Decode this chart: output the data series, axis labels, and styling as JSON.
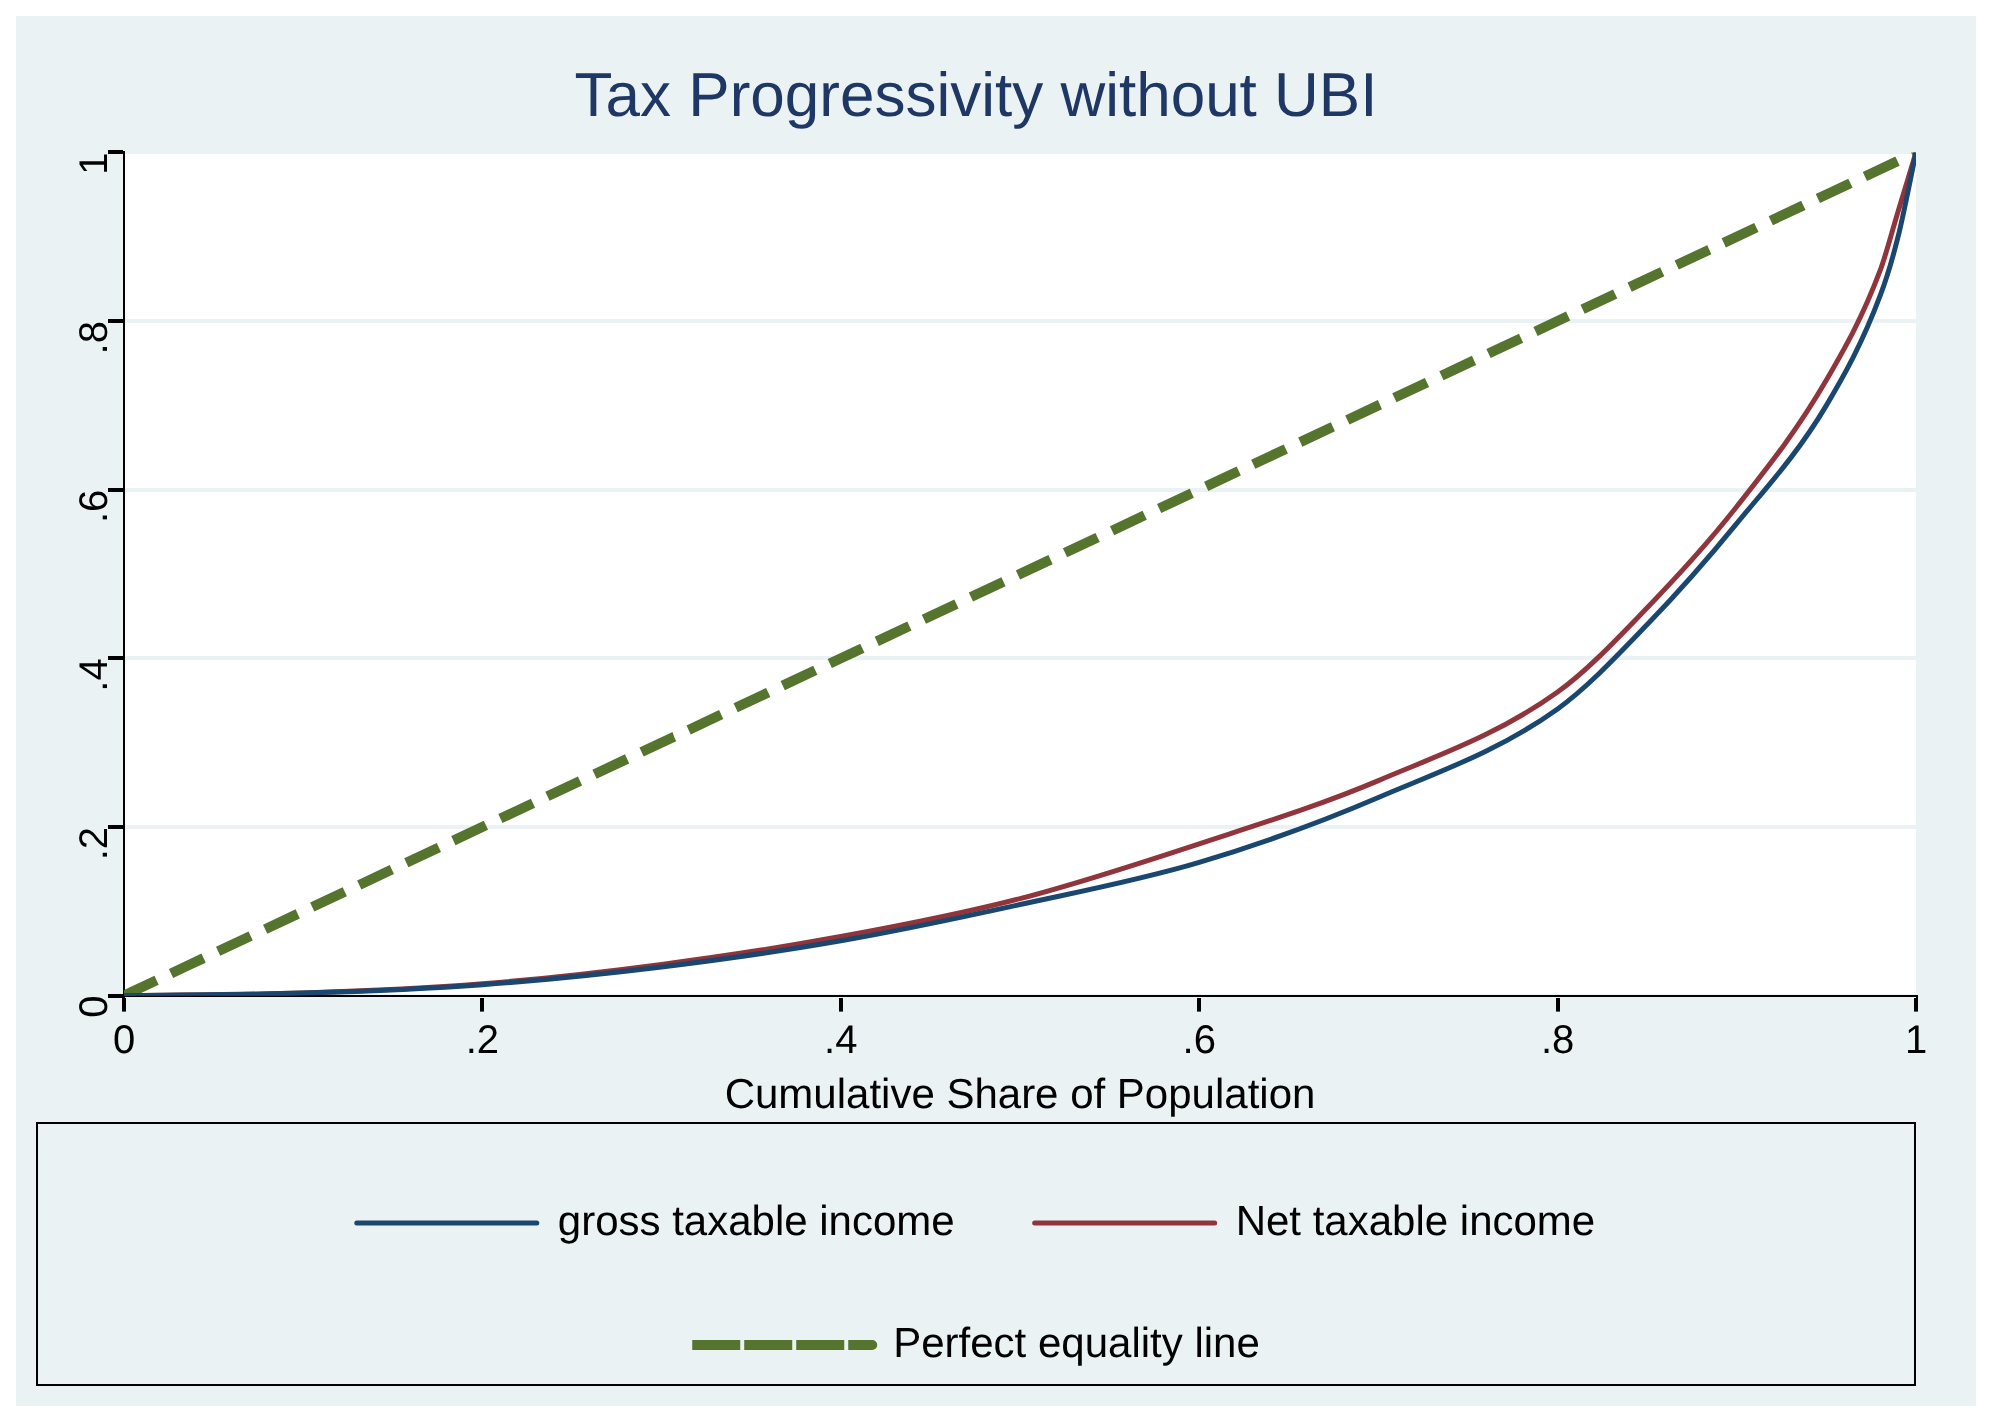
{
  "chart_data": {
    "type": "line",
    "title": "Tax Progressivity without UBI",
    "xlabel": "Cumulative Share of Population",
    "xlim": [
      0,
      1
    ],
    "ylim": [
      0,
      1
    ],
    "xticks": [
      0,
      {
        "value": 0.2,
        "label": ".2"
      },
      {
        "value": 0.4,
        "label": ".4"
      },
      {
        "value": 0.6,
        "label": ".6"
      },
      {
        "value": 0.8,
        "label": ".8"
      },
      1
    ],
    "yticks": [
      0,
      {
        "value": 0.2,
        "label": ".2"
      },
      {
        "value": 0.4,
        "label": ".4"
      },
      {
        "value": 0.6,
        "label": ".6"
      },
      {
        "value": 0.8,
        "label": ".8"
      },
      1
    ],
    "grid": "y",
    "legend": "bottom",
    "marker": "none",
    "series": [
      {
        "name": "gross taxable income",
        "color": "#1a476f",
        "line_style": "solid",
        "x": [
          0,
          0.1,
          0.2,
          0.3,
          0.4,
          0.5,
          0.6,
          0.7,
          0.8,
          0.85,
          0.9,
          0.95,
          0.98,
          0.99,
          1
        ],
        "values": [
          0,
          0.003,
          0.013,
          0.034,
          0.065,
          0.108,
          0.158,
          0.235,
          0.34,
          0.44,
          0.56,
          0.7,
          0.83,
          0.9,
          1
        ]
      },
      {
        "name": "Net taxable income",
        "color": "#90353b",
        "line_style": "solid",
        "x": [
          0,
          0.1,
          0.2,
          0.3,
          0.4,
          0.5,
          0.6,
          0.7,
          0.8,
          0.85,
          0.9,
          0.95,
          0.98,
          0.99,
          1
        ],
        "values": [
          0,
          0.003,
          0.014,
          0.037,
          0.07,
          0.115,
          0.18,
          0.255,
          0.36,
          0.46,
          0.58,
          0.73,
          0.86,
          0.93,
          1
        ]
      },
      {
        "name": "Perfect equality line",
        "color": "#55752f",
        "line_style": "dashed",
        "x": [
          0,
          1
        ],
        "values": [
          0,
          1
        ]
      }
    ]
  }
}
